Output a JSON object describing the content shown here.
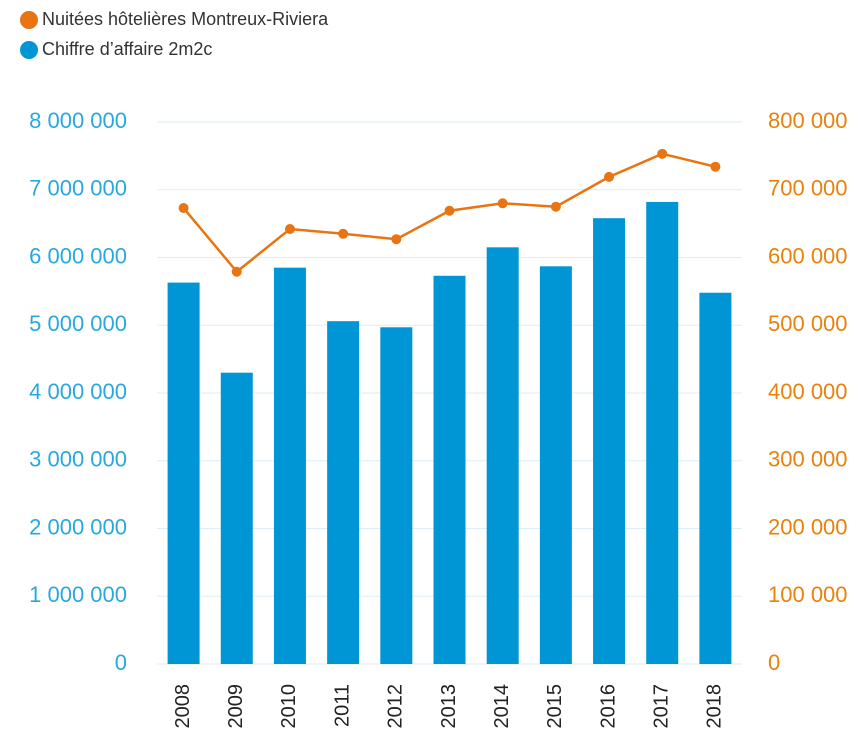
{
  "chart_data": {
    "type": "bar",
    "categories": [
      "2008",
      "2009",
      "2010",
      "2011",
      "2012",
      "2013",
      "2014",
      "2015",
      "2016",
      "2017",
      "2018"
    ],
    "series": [
      {
        "name": "Nuitées hôtelières Montreux-Riviera",
        "type": "line",
        "color": "#e87511",
        "axis": "y2",
        "values": [
          673000,
          579000,
          642000,
          635000,
          627000,
          669000,
          680000,
          675000,
          719000,
          753000,
          734000
        ]
      },
      {
        "name": "Chiffre d’affaire 2m2c",
        "type": "bar",
        "color": "#0095d5",
        "values": [
          5630000,
          4300000,
          5850000,
          5060000,
          4970000,
          5730000,
          6150000,
          5870000,
          6580000,
          6820000,
          5480000
        ]
      }
    ],
    "ylim": [
      0,
      8000000
    ],
    "yticks": [
      0,
      {
        "value": 1000000,
        "label": "1 000 000"
      },
      {
        "value": 2000000,
        "label": "2 000 000"
      },
      {
        "value": 3000000,
        "label": "3 000 000"
      },
      {
        "value": 4000000,
        "label": "4 000 000"
      },
      {
        "value": 5000000,
        "label": "5 000 000"
      },
      {
        "value": 6000000,
        "label": "6 000 000"
      },
      {
        "value": 7000000,
        "label": "7 000 000"
      },
      {
        "value": 8000000,
        "label": "8 000 000"
      }
    ],
    "y2lim": [
      0,
      800000
    ],
    "y2ticks": [
      0,
      {
        "value": 100000,
        "label": "100 000"
      },
      {
        "value": 200000,
        "label": "200 000"
      },
      {
        "value": 300000,
        "label": "300 000"
      },
      {
        "value": 400000,
        "label": "400 000"
      },
      {
        "value": 500000,
        "label": "500 000"
      },
      {
        "value": 600000,
        "label": "600 000"
      },
      {
        "value": 700000,
        "label": "700 000"
      },
      {
        "value": 800000,
        "label": "800 000"
      }
    ],
    "grid": true,
    "legend": "top-left"
  }
}
